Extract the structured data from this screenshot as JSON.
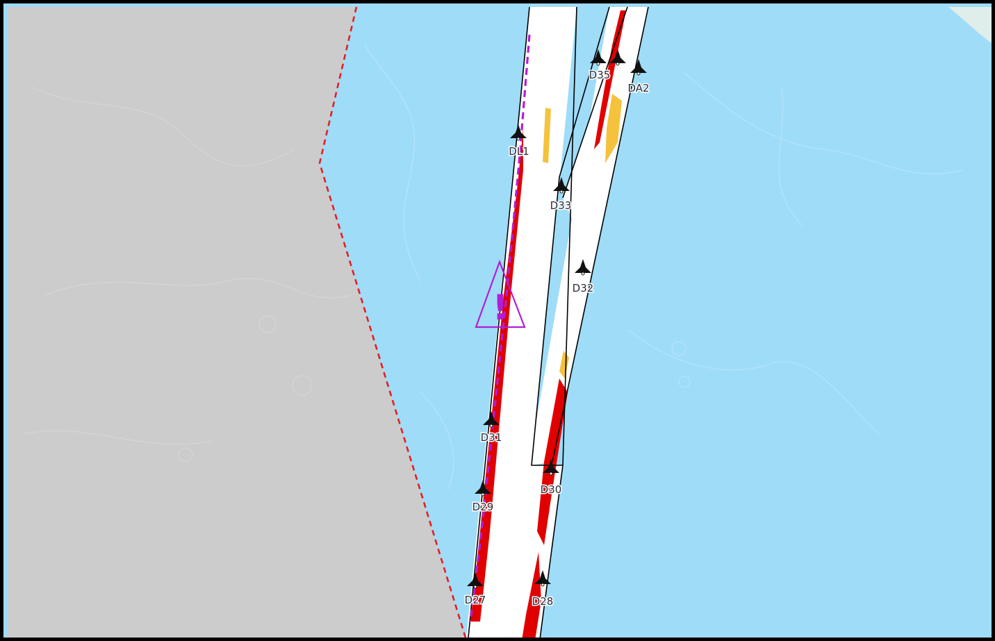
{
  "map": {
    "colors": {
      "water": "#9fdcf8",
      "land": "#cccccc",
      "land_edge": "#dfeeea",
      "channel": "#ffffff",
      "channel_outline": "#000000",
      "boundary": "#e21f26",
      "shoal_red": "#e00000",
      "shoal_yellow": "#f4c23c",
      "track": "#b11ed6",
      "warning": "#b11ed6",
      "buoy": "#111111"
    },
    "buoys": [
      {
        "id": "D35",
        "label": "D35",
        "icon": "buoy-icon"
      },
      {
        "id": "D34",
        "label": "",
        "icon": "buoy-icon"
      },
      {
        "id": "DA2",
        "label": "DA2",
        "icon": "buoy-icon"
      },
      {
        "id": "DL1",
        "label": "DL1",
        "icon": "buoy-icon"
      },
      {
        "id": "D33",
        "label": "D33",
        "icon": "buoy-icon"
      },
      {
        "id": "D32",
        "label": "D32",
        "icon": "buoy-icon"
      },
      {
        "id": "D31",
        "label": "D31",
        "icon": "buoy-icon"
      },
      {
        "id": "D30",
        "label": "D30",
        "icon": "buoy-icon"
      },
      {
        "id": "D29",
        "label": "D29",
        "icon": "buoy-icon"
      },
      {
        "id": "D28",
        "label": "D28",
        "icon": "buoy-icon"
      },
      {
        "id": "D27",
        "label": "D27",
        "icon": "buoy-icon"
      }
    ],
    "warning": {
      "symbol": "!",
      "icon": "warning-triangle-icon"
    }
  }
}
